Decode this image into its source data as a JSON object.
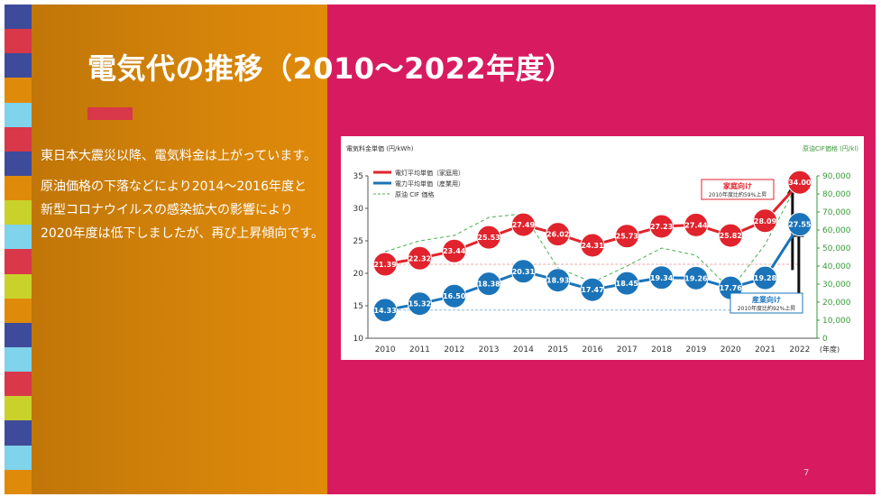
{
  "slide": {
    "title": "電気代の推移（2010〜2022年度）",
    "page_number": "7",
    "body": {
      "line1": "東日本大震災以降、電気料金は上がっています。",
      "line2": "原油価格の下落などにより2014〜2016年度と",
      "line3": "新型コロナウイルスの感染拡大の影響により",
      "line4": "2020年度は低下しましたが、再び上昇傾向です。"
    },
    "colors": {
      "background": "#d81b60",
      "panel": "#d5840a",
      "accent": "#d8384a"
    },
    "stripe_colors": [
      "#3e4b9a",
      "#d8384a",
      "#3e4b9a",
      "#e08a0a",
      "#7fd3ea",
      "#d8384a",
      "#3e4b9a",
      "#e08a0a",
      "#c8d22a",
      "#7fd3ea",
      "#d8384a",
      "#c8d22a",
      "#e08a0a",
      "#3e4b9a",
      "#7fd3ea",
      "#d8384a",
      "#c8d22a",
      "#3e4b9a",
      "#7fd3ea",
      "#e08a0a"
    ]
  },
  "chart_data": {
    "type": "line",
    "ylabel_left": "電気料金単価 (円/kWh)",
    "ylabel_right": "原油CIF価格 (円/kl)",
    "x_unit": "(年度)",
    "categories": [
      "2010",
      "2011",
      "2012",
      "2013",
      "2014",
      "2015",
      "2016",
      "2017",
      "2018",
      "2019",
      "2020",
      "2021",
      "2022"
    ],
    "ylim_left": [
      10,
      35
    ],
    "yticks_left": [
      10,
      15,
      20,
      25,
      30,
      35
    ],
    "ylim_right": [
      0,
      90000
    ],
    "yticks_right": [
      "0",
      "10,000",
      "20,000",
      "30,000",
      "40,000",
      "50,000",
      "60,000",
      "70,000",
      "80,000",
      "90,000"
    ],
    "legend_position": "top-left",
    "series": [
      {
        "name": "電灯平均単価（家庭用）",
        "axis": "left",
        "color": "#e0232c",
        "values": [
          21.39,
          22.32,
          23.44,
          25.53,
          27.49,
          26.02,
          24.31,
          25.73,
          27.23,
          27.44,
          25.82,
          28.09,
          34.0
        ],
        "labels": [
          "21.39",
          "22.32",
          "23.44",
          "25.53",
          "27.49",
          "26.02",
          "24.31",
          "25.73",
          "27.23",
          "27.44",
          "25.82",
          "28.09",
          "34.00"
        ]
      },
      {
        "name": "電力平均単価（産業用）",
        "axis": "left",
        "color": "#1b74b9",
        "values": [
          14.33,
          15.32,
          16.5,
          18.38,
          20.31,
          18.93,
          17.47,
          18.45,
          19.34,
          19.26,
          17.76,
          19.28,
          27.55
        ],
        "labels": [
          "14.33",
          "15.32",
          "16.50",
          "18.38",
          "20.31",
          "18.93",
          "17.47",
          "18.45",
          "19.34",
          "19.26",
          "17.76",
          "19.28",
          "27.55"
        ]
      },
      {
        "name": "原油 CIF 価格",
        "axis": "right",
        "color": "#4caf50",
        "dashed": true,
        "values": [
          48000,
          54000,
          57000,
          67000,
          69000,
          39000,
          31000,
          40000,
          50000,
          46000,
          27000,
          52000,
          88000
        ]
      }
    ],
    "annotations": {
      "household": {
        "title": "家庭向け",
        "sub": "2010年度比約59%上昇"
      },
      "industrial": {
        "title": "産業向け",
        "sub": "2010年度比約92%上昇"
      }
    }
  }
}
